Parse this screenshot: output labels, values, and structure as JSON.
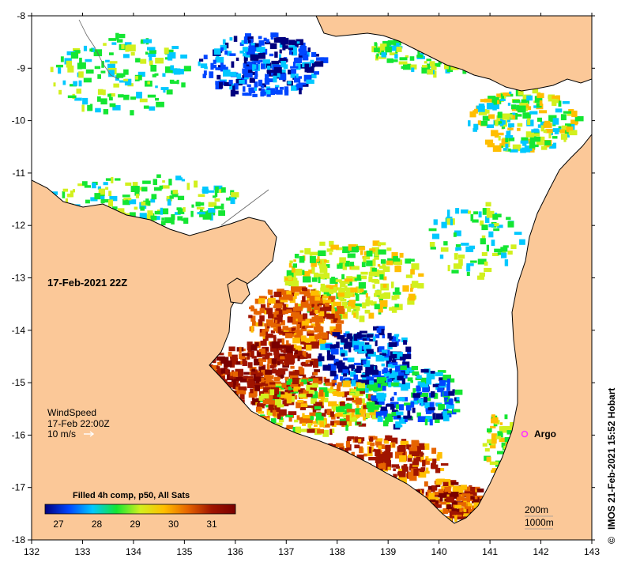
{
  "map": {
    "date_label": "17-Feb-2021 22Z",
    "x_ticks": [
      "132",
      "133",
      "134",
      "135",
      "136",
      "137",
      "138",
      "139",
      "140",
      "141",
      "142",
      "143"
    ],
    "y_ticks": [
      "-8",
      "-9",
      "-10",
      "-11",
      "-12",
      "-13",
      "-14",
      "-15",
      "-16",
      "-17",
      "-18"
    ],
    "colors": {
      "land": "#fbc898",
      "ocean_nodata": "#ffffff",
      "coast": "#000000"
    }
  },
  "wind": {
    "title": "WindSpeed",
    "time": "17-Feb 22:00Z",
    "scale": "10 m/s"
  },
  "argo": {
    "label": "Argo",
    "color": "#ff33ff"
  },
  "depth_legend": {
    "contour_1": "200m",
    "contour_2": "1000m"
  },
  "colorbar": {
    "title": "Filled 4h comp, p50, All Sats",
    "labels": [
      "27",
      "28",
      "29",
      "30",
      "31"
    ],
    "colors": [
      "#00007f",
      "#0046ff",
      "#00c8ff",
      "#14e632",
      "#d2f01e",
      "#ffbe00",
      "#e66400",
      "#a01400",
      "#7a0000"
    ]
  },
  "credit": "IMOS 21-Feb-2021 15:52 Hobart",
  "copyright_symbol": "©"
}
